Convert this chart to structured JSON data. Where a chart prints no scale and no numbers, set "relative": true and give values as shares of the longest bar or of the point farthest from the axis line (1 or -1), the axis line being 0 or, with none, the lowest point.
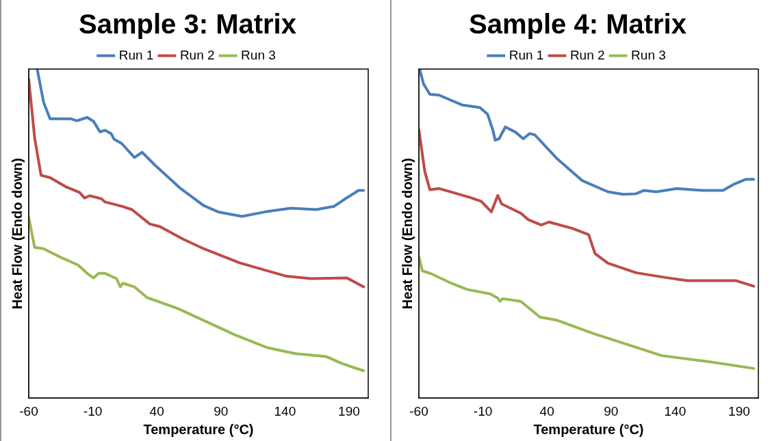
{
  "chart_data": [
    {
      "type": "line",
      "title": "Sample 3: Matrix",
      "xlabel": "Temperature (°C)",
      "ylabel": "Heat Flow (Endo down)",
      "relative": true,
      "xlim": [
        -60,
        205
      ],
      "xticks": [
        -60,
        -10,
        40,
        90,
        140,
        190
      ],
      "grid": false,
      "legend": "top",
      "marker": "none",
      "line_style": "solid",
      "series": [
        {
          "name": "Run 1",
          "color": "#4a7ebb",
          "x": [
            -53.4,
            -48.4,
            -43.4,
            -27.4,
            -22.4,
            -14.4,
            -9.4,
            -4.4,
            -0.4,
            4.5,
            6.5,
            12.5,
            22.5,
            28.5,
            38.5,
            58.5,
            76.5,
            88.5,
            106.5,
            124.5,
            144.5,
            164.5,
            178.5,
            186.4,
            197.4,
            201.4
          ],
          "values": [
            1.0,
            0.899,
            0.849,
            0.849,
            0.843,
            0.853,
            0.841,
            0.809,
            0.814,
            0.803,
            0.787,
            0.774,
            0.731,
            0.747,
            0.708,
            0.637,
            0.585,
            0.565,
            0.552,
            0.566,
            0.577,
            0.573,
            0.583,
            0.604,
            0.631,
            0.631
          ]
        },
        {
          "name": "Run 2",
          "color": "#be4b48",
          "x": [
            -60,
            -55.4,
            -50.4,
            -43.4,
            -31.4,
            -20.4,
            -16.4,
            -12.4,
            -3.4,
            -0.4,
            12.5,
            20.5,
            34.5,
            42.5,
            60.5,
            76.5,
            104.5,
            140.4,
            160.4,
            188.4,
            201.4
          ],
          "values": [
            0.969,
            0.791,
            0.677,
            0.67,
            0.643,
            0.625,
            0.608,
            0.615,
            0.606,
            0.596,
            0.583,
            0.573,
            0.529,
            0.521,
            0.483,
            0.454,
            0.411,
            0.371,
            0.363,
            0.365,
            0.338
          ]
        },
        {
          "name": "Run 3",
          "color": "#98b954",
          "x": [
            -60,
            -55.4,
            -48.4,
            -37.4,
            -21.4,
            -14.4,
            -9.4,
            -5.4,
            -0.4,
            8.5,
            11.5,
            13.5,
            22.5,
            32.5,
            40.5,
            56.5,
            76.5,
            100.5,
            126.4,
            148.4,
            172.4,
            184.4,
            201.4
          ],
          "values": [
            0.55,
            0.458,
            0.454,
            0.432,
            0.404,
            0.379,
            0.365,
            0.379,
            0.379,
            0.363,
            0.338,
            0.349,
            0.338,
            0.305,
            0.294,
            0.272,
            0.236,
            0.193,
            0.153,
            0.135,
            0.126,
            0.105,
            0.083
          ]
        }
      ]
    },
    {
      "type": "line",
      "title": "Sample 4: Matrix",
      "xlabel": "Temperature (°C)",
      "ylabel": "Heat Flow (Endo down)",
      "relative": true,
      "xlim": [
        -60,
        205
      ],
      "xticks": [
        -60,
        -10,
        40,
        90,
        140,
        190
      ],
      "grid": false,
      "legend": "top",
      "marker": "none",
      "line_style": "solid",
      "series": [
        {
          "name": "Run 1",
          "color": "#4a7ebb",
          "x": [
            -59.4,
            -56.4,
            -51.4,
            -44.4,
            -26.4,
            -12.4,
            -6.4,
            -2.4,
            -0.4,
            2.6,
            7.5,
            15.5,
            21.5,
            26.5,
            30.5,
            47.5,
            67.5,
            87.5,
            99.5,
            109.5,
            115.5,
            125.5,
            141.5,
            161.5,
            177.4,
            185.4,
            195.4,
            201.4
          ],
          "values": [
            1.0,
            0.955,
            0.923,
            0.921,
            0.891,
            0.883,
            0.863,
            0.816,
            0.784,
            0.788,
            0.824,
            0.808,
            0.788,
            0.804,
            0.8,
            0.729,
            0.661,
            0.627,
            0.619,
            0.621,
            0.631,
            0.627,
            0.637,
            0.631,
            0.631,
            0.649,
            0.665,
            0.665
          ]
        },
        {
          "name": "Run 2",
          "color": "#be4b48",
          "x": [
            -60,
            -55.4,
            -51.4,
            -44.4,
            -20.4,
            -11.4,
            -3.4,
            1.6,
            4.6,
            19.5,
            25.5,
            35.5,
            41.5,
            59.5,
            72.5,
            77.5,
            87.5,
            109.5,
            131.5,
            149.5,
            187.4,
            201.4
          ],
          "values": [
            0.816,
            0.689,
            0.633,
            0.637,
            0.61,
            0.598,
            0.566,
            0.616,
            0.59,
            0.562,
            0.542,
            0.526,
            0.535,
            0.516,
            0.497,
            0.439,
            0.41,
            0.381,
            0.367,
            0.357,
            0.357,
            0.34
          ]
        },
        {
          "name": "Run 3",
          "color": "#98b954",
          "x": [
            -60,
            -57.4,
            -50.4,
            -36.4,
            -22.4,
            -4.4,
            1.6,
            3.2,
            5.5,
            19.5,
            34.5,
            47.5,
            75.5,
            99.5,
            129.5,
            167.4,
            201.4
          ],
          "values": [
            0.431,
            0.387,
            0.378,
            0.352,
            0.33,
            0.317,
            0.304,
            0.294,
            0.302,
            0.294,
            0.246,
            0.237,
            0.197,
            0.167,
            0.129,
            0.11,
            0.09
          ]
        }
      ]
    }
  ]
}
